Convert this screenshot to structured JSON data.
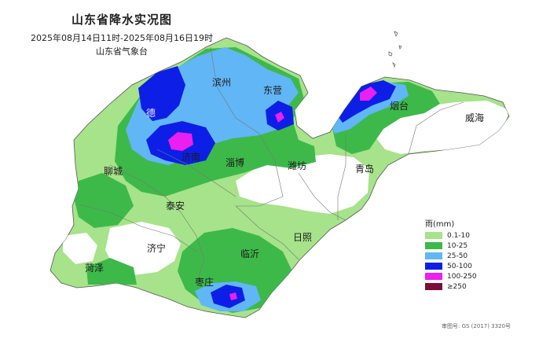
{
  "header": {
    "title": "山东省降水实况图",
    "period": "2025年08月14日11时-2025年08月16日19时",
    "agency": "山东省气象台"
  },
  "cities": [
    {
      "id": "binzhou",
      "name": "滨州"
    },
    {
      "id": "dongying",
      "name": "东营"
    },
    {
      "id": "yantai",
      "name": "烟台"
    },
    {
      "id": "weihai",
      "name": "威海"
    },
    {
      "id": "jinan",
      "name": "济南"
    },
    {
      "id": "zibo",
      "name": "淄博"
    },
    {
      "id": "weifang",
      "name": "潍坊"
    },
    {
      "id": "qingdao",
      "name": "青岛"
    },
    {
      "id": "liaocheng",
      "name": "聊城"
    },
    {
      "id": "taian",
      "name": "泰安"
    },
    {
      "id": "jining",
      "name": "济宁"
    },
    {
      "id": "heze",
      "name": "菏泽"
    },
    {
      "id": "linyi",
      "name": "临沂"
    },
    {
      "id": "rizhao",
      "name": "日照"
    },
    {
      "id": "zaozhuang",
      "name": "枣庄"
    },
    {
      "id": "de",
      "name": "德"
    }
  ],
  "legend": {
    "title": "雨(mm)",
    "items": [
      {
        "label": "0.1-10",
        "color": "#a6e38a"
      },
      {
        "label": "10-25",
        "color": "#3db94a"
      },
      {
        "label": "25-50",
        "color": "#61b6f5"
      },
      {
        "label": "50-100",
        "color": "#0d1fe6"
      },
      {
        "label": "100-250",
        "color": "#ea1ff0"
      },
      {
        "label": "≥250",
        "color": "#7a0d3a"
      }
    ]
  },
  "footer": {
    "map_number": "审图号: GS (2017) 3320号"
  }
}
